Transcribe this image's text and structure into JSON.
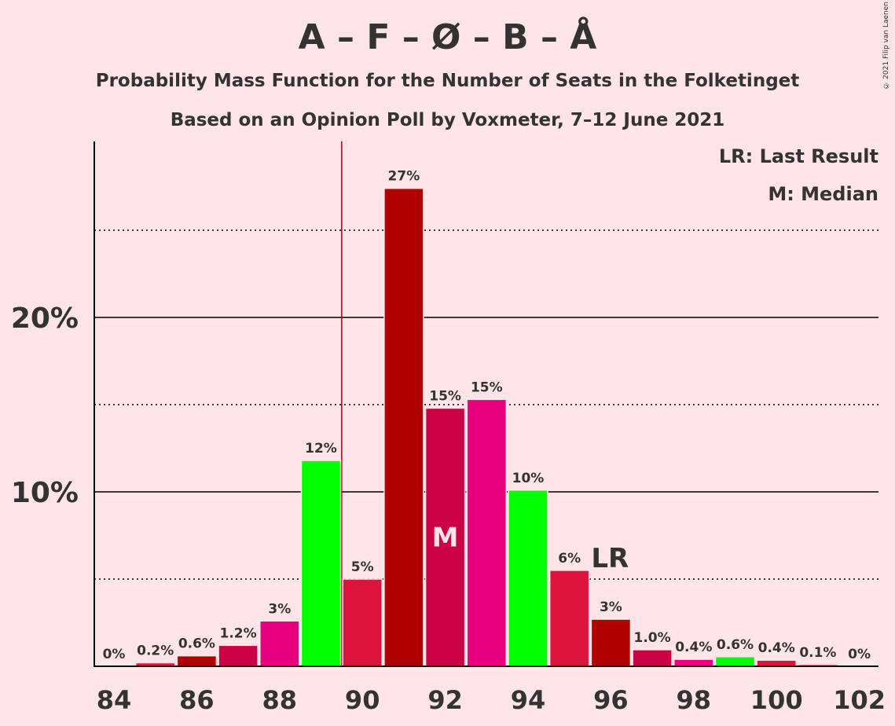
{
  "chart_data": {
    "type": "bar",
    "title": "A – F – Ø – B – Å",
    "subtitle_1": "Probability Mass Function for the Number of Seats in the Folketinget",
    "subtitle_2": "Based on an Opinion Poll by Voxmeter, 7–12 June 2021",
    "credit": "© 2021 Filip van Laenen",
    "legend": [
      "LR: Last Result",
      "M: Median"
    ],
    "xlabel": "",
    "ylabel": "",
    "x_tick_labels": [
      "84",
      "86",
      "88",
      "90",
      "92",
      "94",
      "96",
      "98",
      "100",
      "102"
    ],
    "y_tick_labels": [
      "10%",
      "20%"
    ],
    "ylim": [
      0,
      30
    ],
    "grid": true,
    "categories": [
      84,
      85,
      86,
      87,
      88,
      89,
      90,
      91,
      92,
      93,
      94,
      95,
      96,
      97,
      98,
      99,
      100,
      101,
      102
    ],
    "values": [
      0.0,
      0.2,
      0.6,
      1.2,
      2.6,
      11.8,
      5.0,
      27.4,
      14.8,
      15.3,
      10.1,
      5.5,
      2.7,
      0.95,
      0.4,
      0.55,
      0.35,
      0.1,
      0.0
    ],
    "value_labels": [
      "0%",
      "0.2%",
      "0.6%",
      "1.2%",
      "3%",
      "12%",
      "5%",
      "27%",
      "15%",
      "15%",
      "10%",
      "6%",
      "3%",
      "1.0%",
      "0.4%",
      "0.6%",
      "0.4%",
      "0.1%",
      "0%"
    ],
    "bar_colors": [
      "#DC143C",
      "#DC143C",
      "#B10000",
      "#CC0044",
      "#E6007E",
      "#00FF00",
      "#DC143C",
      "#B10000",
      "#CC0044",
      "#E6007E",
      "#00FF00",
      "#DC143C",
      "#B10000",
      "#CC0044",
      "#E6007E",
      "#00FF00",
      "#DC143C",
      "#B10000",
      "#CC0044"
    ],
    "median_seats": 92,
    "median_label": "M",
    "last_result_seats": 96,
    "last_result_label": "LR",
    "majority_seats": 89.5
  }
}
